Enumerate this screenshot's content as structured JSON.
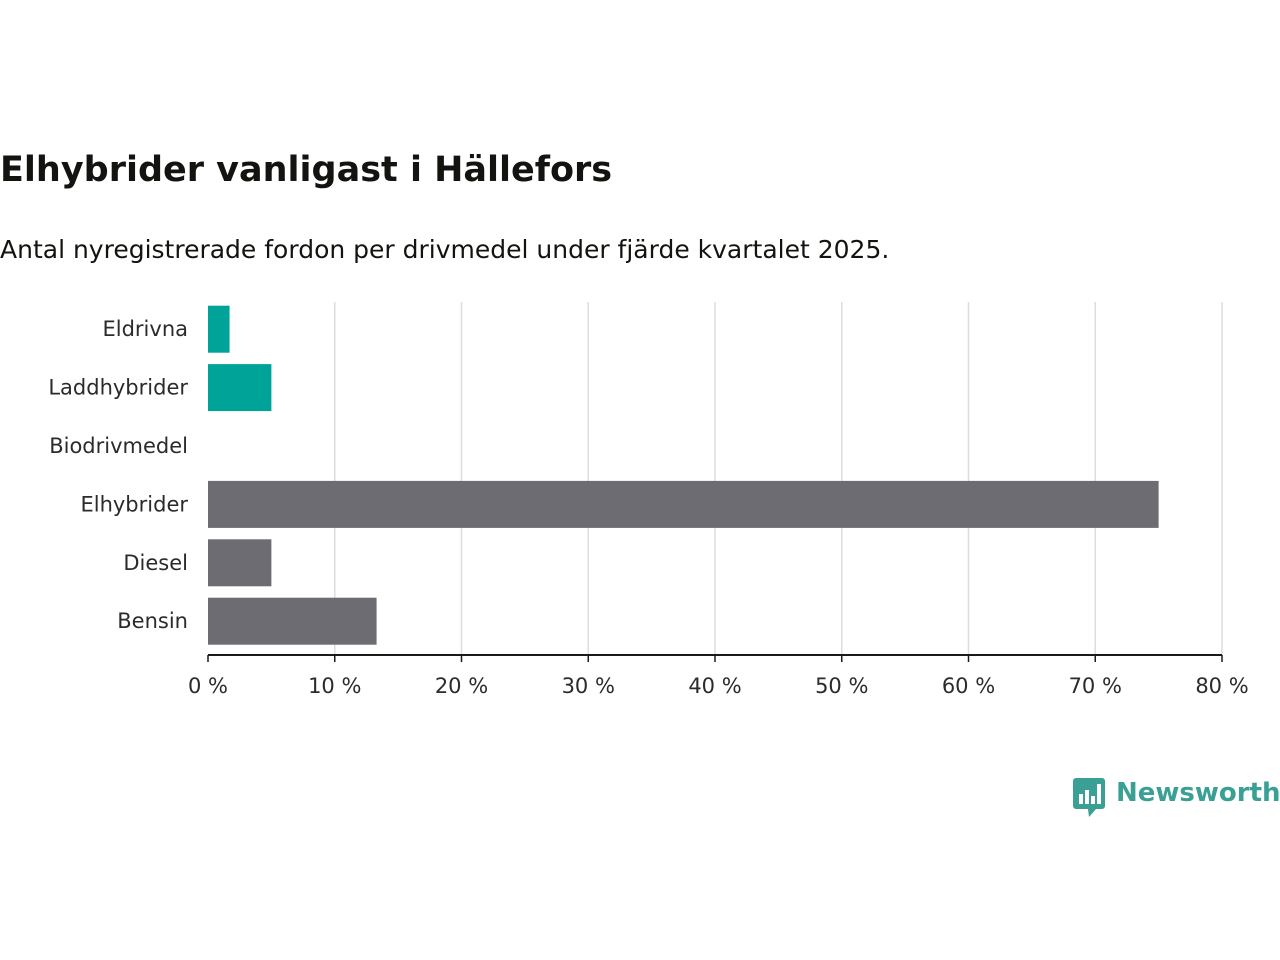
{
  "title": "Elhybrider vanligast i Hällefors",
  "subtitle": "Antal nyregistrerade fordon per drivmedel under fjärde kvartalet 2025.",
  "brand": {
    "name": "Newsworthy",
    "icon": "bar-chart-speech-bubble-icon",
    "color": "#3a9f94"
  },
  "colors": {
    "highlight": "#00a398",
    "default": "#6d6c72",
    "grid": "#dddddd",
    "axis": "#1a1a1a"
  },
  "chart_data": {
    "type": "bar",
    "orientation": "horizontal",
    "title": "Elhybrider vanligast i Hällefors",
    "subtitle": "Antal nyregistrerade fordon per drivmedel under fjärde kvartalet 2025.",
    "xlabel": "",
    "ylabel": "",
    "unit": "%",
    "xlim": [
      0,
      80
    ],
    "ticks": [
      0,
      10,
      20,
      30,
      40,
      50,
      60,
      70,
      80
    ],
    "tick_labels": [
      "0 %",
      "10 %",
      "20 %",
      "30 %",
      "40 %",
      "50 %",
      "60 %",
      "70 %",
      "80 %"
    ],
    "grid": true,
    "categories": [
      "Eldrivna",
      "Laddhybrider",
      "Biodrivmedel",
      "Elhybrider",
      "Diesel",
      "Bensin"
    ],
    "values": [
      1.7,
      5.0,
      0,
      75.0,
      5.0,
      13.3
    ],
    "highlight": [
      true,
      true,
      false,
      false,
      false,
      false
    ]
  }
}
